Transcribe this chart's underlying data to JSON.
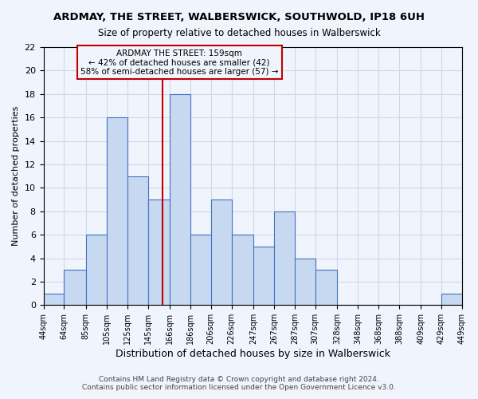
{
  "title": "ARDMAY, THE STREET, WALBERSWICK, SOUTHWOLD, IP18 6UH",
  "subtitle": "Size of property relative to detached houses in Walberswick",
  "xlabel": "Distribution of detached houses by size in Walberswick",
  "ylabel": "Number of detached properties",
  "bin_edges": [
    44,
    64,
    85,
    105,
    125,
    145,
    166,
    186,
    206,
    226,
    247,
    267,
    287,
    307,
    328,
    348,
    368,
    388,
    409,
    429,
    449
  ],
  "bar_heights": [
    1,
    3,
    6,
    16,
    11,
    9,
    18,
    6,
    9,
    6,
    5,
    8,
    4,
    3,
    0,
    0,
    0,
    0,
    0,
    1
  ],
  "bar_color": "#c6d9f0",
  "bar_edge_color": "#4472c4",
  "vline_x": 159,
  "vline_color": "#c00000",
  "annotation_box_color": "#c00000",
  "annotation_title": "ARDMAY THE STREET: 159sqm",
  "annotation_line1": "← 42% of detached houses are smaller (42)",
  "annotation_line2": "58% of semi-detached houses are larger (57) →",
  "ylim": [
    0,
    22
  ],
  "yticks": [
    0,
    2,
    4,
    6,
    8,
    10,
    12,
    14,
    16,
    18,
    20,
    22
  ],
  "grid_color": "#d0d8e8",
  "background_color": "#f0f4fc",
  "footer_line1": "Contains HM Land Registry data © Crown copyright and database right 2024.",
  "footer_line2": "Contains public sector information licensed under the Open Government Licence v3.0."
}
